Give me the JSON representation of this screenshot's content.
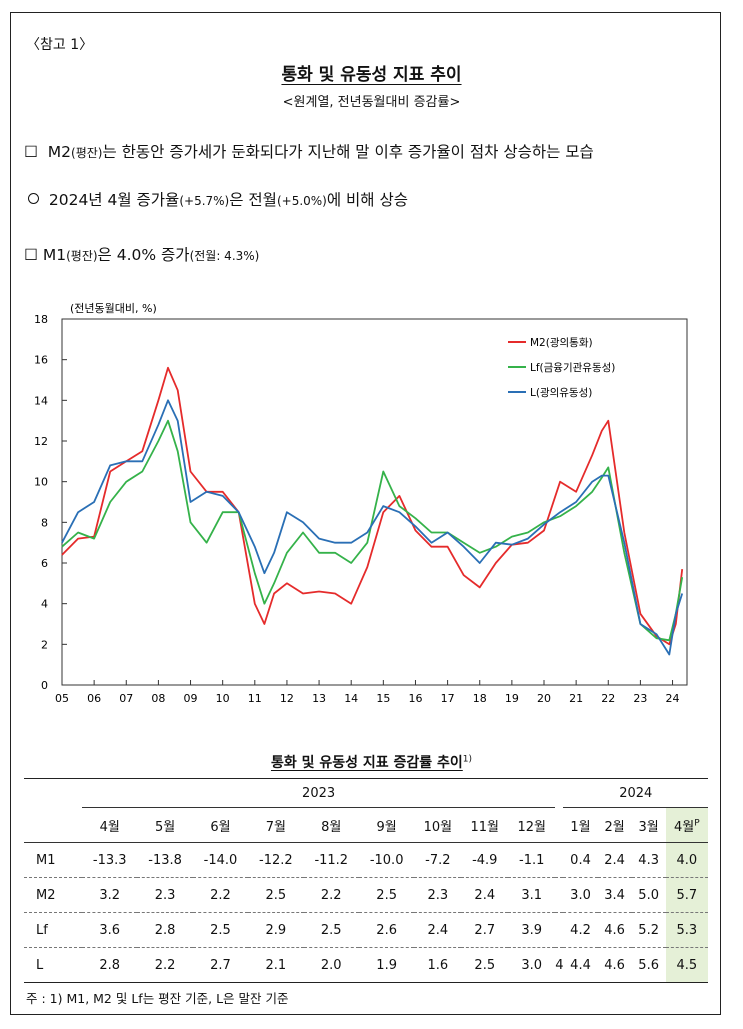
{
  "ref_tag": "〈참고 1〉",
  "title": "통화 및 유동성 지표 추이",
  "subtitle": "<원계열, 전년동월대비 증감률>",
  "bullets": [
    {
      "marker": "☐",
      "text": "M2",
      "small": "(평잔)",
      "rest": "는 한동안 증가세가 둔화되다가 지난해 말 이후 증가율이 점차 상승하는 모습"
    },
    {
      "marker": "ㅇ",
      "text": "2024년 4월 증가율",
      "small": "(+5.7%)",
      "rest": "은 전월",
      "small2": "(+5.0%)",
      "rest2": "에 비해 상승"
    },
    {
      "marker": "☐",
      "text": "M1",
      "small": "(평잔)",
      "rest": "은 4.0% 증가",
      "small2": "(전월: 4.3%)",
      "rest2": ""
    }
  ],
  "chart_data": {
    "type": "line",
    "title": "",
    "ylabel": "(전년동월대비, %)",
    "xlabel": "",
    "ylim": [
      0,
      18
    ],
    "yticks": [
      "0",
      "2",
      "4",
      "6",
      "8",
      "10",
      "12",
      "14",
      "16",
      "18"
    ],
    "xticks": [
      "05",
      "06",
      "07",
      "08",
      "09",
      "10",
      "11",
      "12",
      "13",
      "14",
      "15",
      "16",
      "17",
      "18",
      "19",
      "20",
      "21",
      "22",
      "23",
      "24"
    ],
    "grid": false,
    "legend_position": "top-right",
    "x": [
      2005.0,
      2005.5,
      2006.0,
      2006.5,
      2007.0,
      2007.5,
      2008.0,
      2008.3,
      2008.6,
      2009.0,
      2009.5,
      2010.0,
      2010.5,
      2011.0,
      2011.3,
      2011.6,
      2012.0,
      2012.5,
      2013.0,
      2013.5,
      2014.0,
      2014.5,
      2015.0,
      2015.5,
      2016.0,
      2016.5,
      2017.0,
      2017.5,
      2018.0,
      2018.5,
      2019.0,
      2019.5,
      2020.0,
      2020.5,
      2021.0,
      2021.5,
      2021.8,
      2022.0,
      2022.5,
      2023.0,
      2023.5,
      2023.9,
      2024.1,
      2024.3
    ],
    "series": [
      {
        "name": "M2(광의통화)",
        "color": "#e52b2b",
        "values": [
          6.4,
          7.2,
          7.3,
          10.5,
          11.0,
          11.5,
          14.0,
          15.6,
          14.5,
          10.5,
          9.5,
          9.5,
          8.5,
          4.0,
          3.0,
          4.5,
          5.0,
          4.5,
          4.6,
          4.5,
          4.0,
          5.8,
          8.5,
          9.3,
          7.6,
          6.8,
          6.8,
          5.4,
          4.8,
          6.0,
          6.9,
          7.0,
          7.6,
          10.0,
          9.5,
          11.3,
          12.5,
          13.0,
          7.5,
          3.5,
          2.4,
          2.0,
          3.0,
          5.7
        ]
      },
      {
        "name": "Lf(금융기관유동성)",
        "color": "#35b24a",
        "values": [
          6.8,
          7.5,
          7.2,
          9.0,
          10.0,
          10.5,
          12.0,
          13.0,
          11.5,
          8.0,
          7.0,
          8.5,
          8.5,
          5.5,
          4.0,
          5.0,
          6.5,
          7.5,
          6.5,
          6.5,
          6.0,
          7.0,
          10.5,
          8.8,
          8.2,
          7.5,
          7.5,
          7.0,
          6.5,
          6.8,
          7.3,
          7.5,
          8.0,
          8.3,
          8.8,
          9.5,
          10.2,
          10.7,
          6.5,
          3.0,
          2.3,
          2.2,
          3.5,
          5.3
        ]
      },
      {
        "name": "L(광의유동성)",
        "color": "#2a6fb5",
        "values": [
          7.0,
          8.5,
          9.0,
          10.8,
          11.0,
          11.0,
          12.8,
          14.0,
          13.0,
          9.0,
          9.5,
          9.3,
          8.5,
          6.8,
          5.5,
          6.5,
          8.5,
          8.0,
          7.2,
          7.0,
          7.0,
          7.5,
          8.8,
          8.5,
          7.8,
          7.0,
          7.5,
          6.8,
          6.0,
          7.0,
          6.9,
          7.2,
          7.9,
          8.5,
          9.0,
          10.0,
          10.3,
          10.3,
          7.0,
          3.0,
          2.5,
          1.5,
          3.5,
          4.5
        ]
      }
    ]
  },
  "table": {
    "title": "통화 및 유동성 지표 증감률 추이",
    "title_note": "1)",
    "years": [
      "2023",
      "2024"
    ],
    "months_2023": [
      "4월",
      "5월",
      "6월",
      "7월",
      "8월",
      "9월",
      "10월",
      "11월",
      "12월"
    ],
    "months_2024": [
      "1월",
      "2월",
      "3월",
      "4월"
    ],
    "prelim_mark": "P",
    "rows": [
      {
        "label": "M1",
        "v2023": [
          "-13.3",
          "-13.8",
          "-14.0",
          "-12.2",
          "-11.2",
          "-10.0",
          "-7.2",
          "-4.9",
          "-1.1"
        ],
        "v2024": [
          "0.4",
          "2.4",
          "4.3",
          "4.0"
        ]
      },
      {
        "label": "M2",
        "v2023": [
          "3.2",
          "2.3",
          "2.2",
          "2.5",
          "2.2",
          "2.5",
          "2.3",
          "2.4",
          "3.1"
        ],
        "v2024": [
          "3.0",
          "3.4",
          "5.0",
          "5.7"
        ]
      },
      {
        "label": "Lf",
        "v2023": [
          "3.6",
          "2.8",
          "2.5",
          "2.9",
          "2.5",
          "2.6",
          "2.4",
          "2.7",
          "3.9"
        ],
        "v2024": [
          "4.2",
          "4.6",
          "5.2",
          "5.3"
        ]
      },
      {
        "label": "L",
        "v2023": [
          "2.8",
          "2.2",
          "2.7",
          "2.1",
          "2.0",
          "1.9",
          "1.6",
          "2.5",
          "3.0"
        ],
        "v2024": [
          "4.4",
          "4.6",
          "5.6",
          "4.5"
        ],
        "stray": "4"
      }
    ],
    "highlight_color": "#e5f0d7"
  },
  "note": "주 : 1) M1, M2 및 Lf는 평잔 기준, L은 말잔 기준"
}
